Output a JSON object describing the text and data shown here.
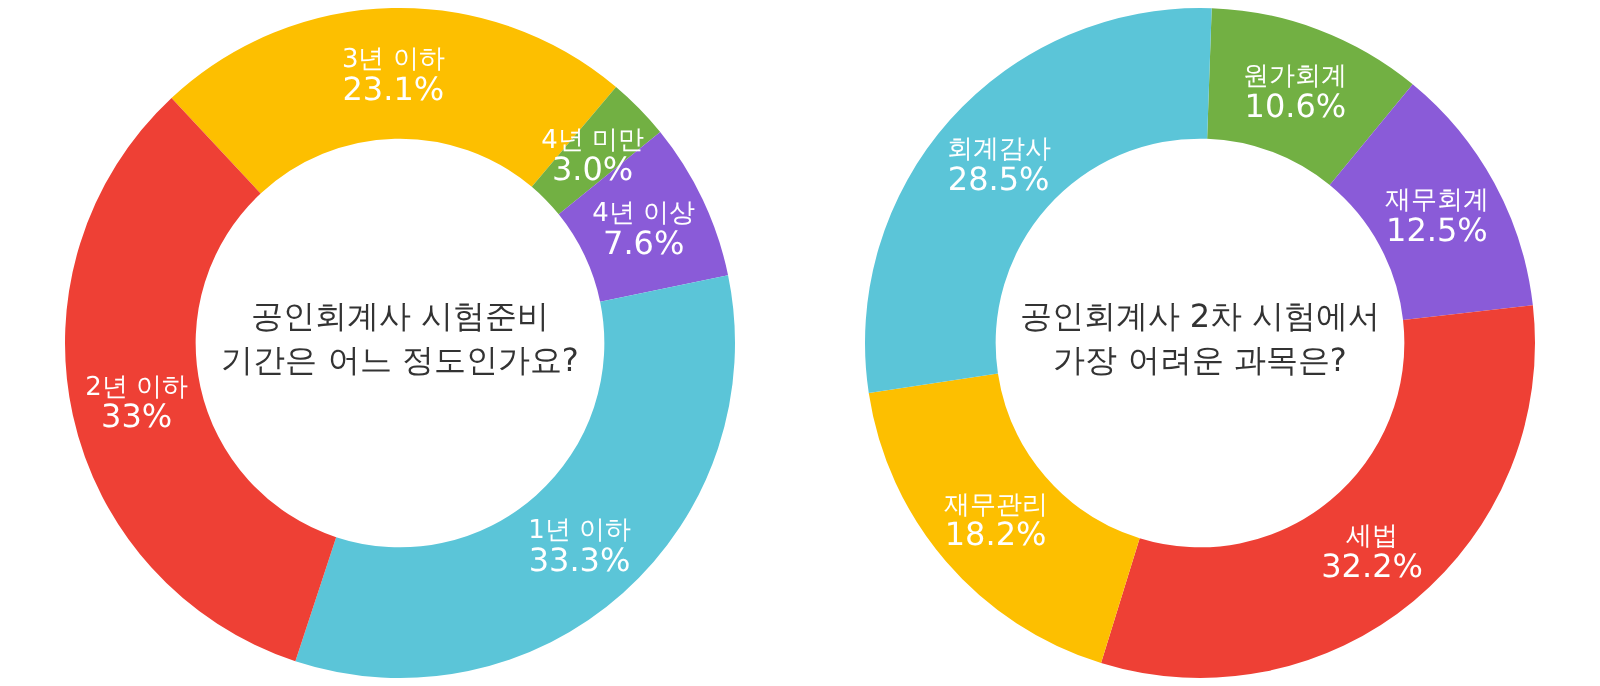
{
  "chart_data": [
    {
      "type": "donut",
      "title": "공인회계사 시험준비 기간은 어느 정도인가요?",
      "categories": [
        "3년 이하",
        "4년 미만",
        "4년 이상",
        "1년 이하",
        "2년 이하"
      ],
      "values": [
        23.1,
        3.0,
        7.6,
        33.3,
        33
      ],
      "value_labels": [
        "23.1%",
        "3.0%",
        "7.6%",
        "33.3%",
        "33%"
      ],
      "colors": [
        "#fdbf00",
        "#72b043",
        "#8a5bd8",
        "#5bc5d8",
        "#ee4035"
      ],
      "legend": false
    },
    {
      "type": "donut",
      "title": "공인회계사 2차 시험에서 가장 어려운 과목은?",
      "categories": [
        "원가회계",
        "재무회계",
        "세법",
        "재무관리",
        "회계감사"
      ],
      "values": [
        10.6,
        12.5,
        32.2,
        18.2,
        28.5
      ],
      "value_labels": [
        "10.6%",
        "12.5%",
        "32.2%",
        "18.2%",
        "28.5%"
      ],
      "colors": [
        "#72b043",
        "#8a5bd8",
        "#ee4035",
        "#fdbf00",
        "#5bc5d8"
      ],
      "legend": false
    }
  ]
}
